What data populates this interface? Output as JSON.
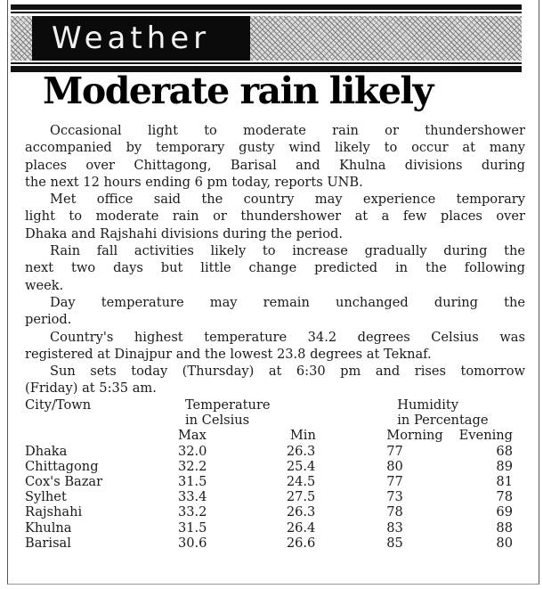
{
  "section": "Weather",
  "headline": "Moderate rain likely",
  "paragraphs": [
    [
      "Occasional light to moderate rain or thundershower",
      "accompanied by temporary gusty wind likely to occur at many",
      "places over Chittagong, Barisal and Khulna divisions during",
      "the next 12 hours ending 6 pm today, reports UNB."
    ],
    [
      "Met office said the country may experience temporary",
      "light to moderate rain or thundershower at a few places over",
      "Dhaka and Rajshahi divisions during the period."
    ],
    [
      "Rain fall activities likely to increase gradually during the",
      "next two days but little change predicted in the following",
      "week."
    ],
    [
      "Day temperature may remain unchanged during the",
      "period."
    ],
    [
      "Country's highest temperature 34.2 degrees Celsius was",
      "registered at Dinajpur and the lowest 23.8 degrees at Teknaf."
    ],
    [
      "Sun sets today (Thursday) at 6:30 pm and rises tomorrow",
      "(Friday) at 5:35 am."
    ]
  ],
  "table": {
    "header": {
      "city": "City/Town",
      "temp1": "Temperature",
      "temp2": "in Celsius",
      "hum1": "Humidity",
      "hum2": "in Percentage",
      "max": "Max",
      "min": "Min",
      "morning": "Morning",
      "evening": "Evening"
    },
    "rows": [
      {
        "city": "Dhaka",
        "max": "32.0",
        "min": "26.3",
        "morning": "77",
        "evening": "68"
      },
      {
        "city": "Chittagong",
        "max": "32.2",
        "min": "25.4",
        "morning": "80",
        "evening": "89"
      },
      {
        "city": "Cox's Bazar",
        "max": "31.5",
        "min": "24.5",
        "morning": "77",
        "evening": "81"
      },
      {
        "city": "Sylhet",
        "max": "33.4",
        "min": "27.5",
        "morning": "73",
        "evening": "78"
      },
      {
        "city": "Rajshahi",
        "max": "33.2",
        "min": "26.3",
        "morning": "78",
        "evening": "69"
      },
      {
        "city": "Khulna",
        "max": "31.5",
        "min": "26.4",
        "morning": "83",
        "evening": "88"
      },
      {
        "city": "Barisal",
        "max": "30.6",
        "min": "26.6",
        "morning": "85",
        "evening": "80"
      }
    ]
  }
}
